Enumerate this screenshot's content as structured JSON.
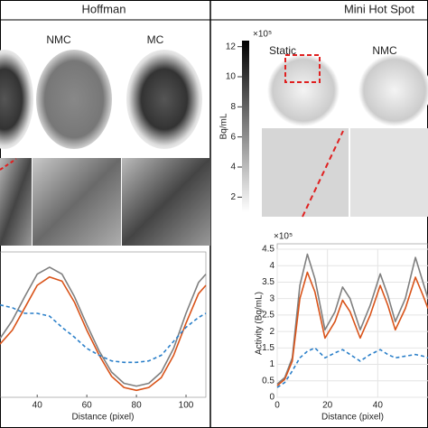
{
  "left": {
    "title": "Hoffman",
    "labels": [
      "NMC",
      "MC"
    ]
  },
  "right": {
    "title": "Mini Hot Spot",
    "labels": [
      "Static",
      "NMC"
    ]
  },
  "colorbar": {
    "multiplier": "×10⁵",
    "label": "Bq/mL",
    "lim": [
      1,
      12.4
    ],
    "ticks": [
      2,
      4,
      6,
      8,
      10,
      12
    ]
  },
  "chart_data": [
    {
      "type": "line",
      "x_label": "Distance (pixel)",
      "x": [
        25,
        30,
        35,
        40,
        45,
        50,
        55,
        60,
        65,
        70,
        75,
        80,
        85,
        90,
        95,
        100,
        105,
        108
      ],
      "xlim": [
        25,
        108
      ],
      "xticks": [
        40,
        60,
        80,
        100
      ],
      "ylim": [
        0,
        1
      ],
      "grid": false,
      "series": [
        {
          "color": "#7f7f7f",
          "dash": false,
          "values": [
            0.42,
            0.55,
            0.72,
            0.88,
            0.93,
            0.88,
            0.72,
            0.52,
            0.33,
            0.18,
            0.1,
            0.08,
            0.1,
            0.18,
            0.35,
            0.6,
            0.82,
            0.88
          ]
        },
        {
          "color": "#d95319",
          "dash": false,
          "values": [
            0.38,
            0.48,
            0.64,
            0.8,
            0.86,
            0.83,
            0.68,
            0.48,
            0.3,
            0.15,
            0.07,
            0.05,
            0.07,
            0.14,
            0.3,
            0.53,
            0.74,
            0.8
          ]
        },
        {
          "color": "#2a7fc9",
          "dash": true,
          "values": [
            0.66,
            0.64,
            0.6,
            0.6,
            0.58,
            0.5,
            0.43,
            0.35,
            0.3,
            0.26,
            0.25,
            0.25,
            0.26,
            0.3,
            0.4,
            0.5,
            0.57,
            0.6
          ]
        }
      ]
    },
    {
      "type": "line",
      "x_label": "Distance (pixel)",
      "y_label": "Activity (Bq/mL)",
      "multiplier": "×10⁵",
      "x": [
        0,
        3,
        6,
        9,
        12,
        15,
        19,
        23,
        26,
        29,
        33,
        37,
        41,
        44,
        47,
        51,
        55,
        58,
        60
      ],
      "xlim": [
        0,
        60
      ],
      "xticks": [
        0,
        20,
        40
      ],
      "ylim": [
        0,
        4.5
      ],
      "yticks": [
        0,
        0.5,
        1,
        1.5,
        2,
        2.5,
        3,
        3.5,
        4,
        4.5
      ],
      "grid": true,
      "series": [
        {
          "color": "#7f7f7f",
          "dash": false,
          "values": [
            0.4,
            0.6,
            1.2,
            3.4,
            4.35,
            3.6,
            2.05,
            2.6,
            3.35,
            3.0,
            2.05,
            2.8,
            3.75,
            3.1,
            2.3,
            3.0,
            4.25,
            3.5,
            3.0
          ]
        },
        {
          "color": "#d95319",
          "dash": false,
          "values": [
            0.35,
            0.55,
            1.1,
            3.0,
            3.8,
            3.2,
            1.8,
            2.3,
            2.95,
            2.6,
            1.8,
            2.5,
            3.4,
            2.8,
            2.05,
            2.7,
            3.65,
            3.1,
            2.7
          ]
        },
        {
          "color": "#2a7fc9",
          "dash": true,
          "values": [
            0.3,
            0.45,
            0.8,
            1.2,
            1.4,
            1.5,
            1.2,
            1.35,
            1.45,
            1.3,
            1.1,
            1.3,
            1.45,
            1.3,
            1.2,
            1.25,
            1.3,
            1.25,
            1.2
          ]
        }
      ]
    }
  ]
}
